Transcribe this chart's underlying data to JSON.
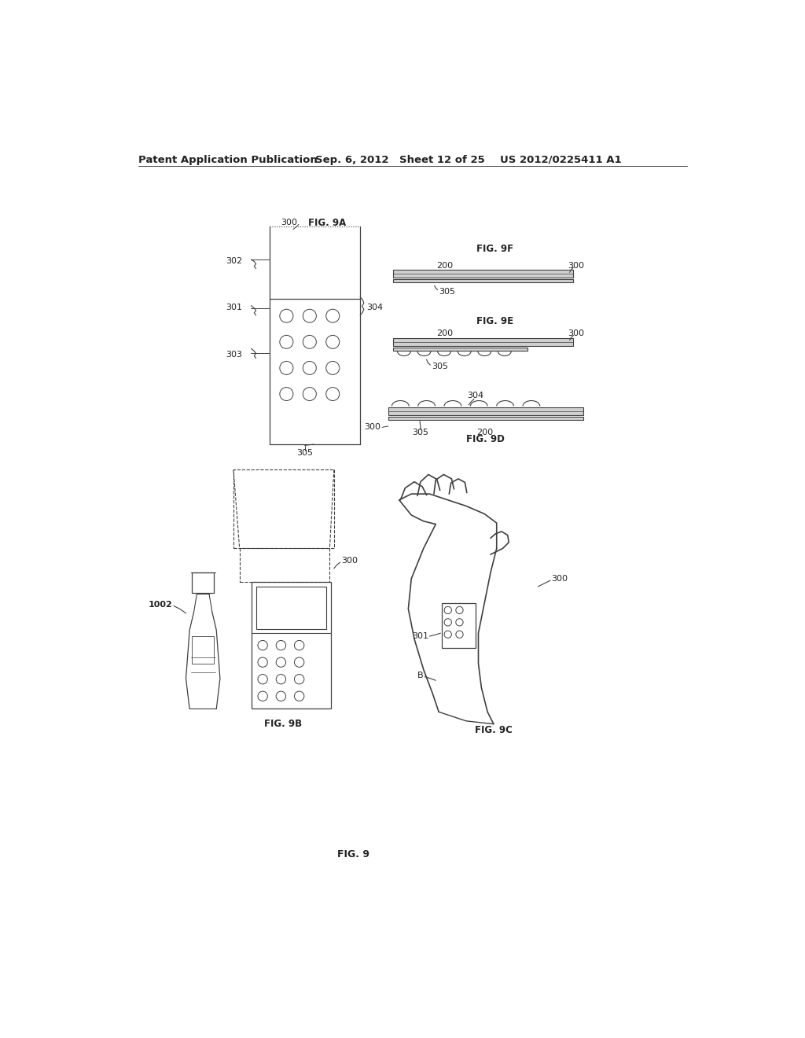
{
  "bg_color": "#ffffff",
  "header_text": "Patent Application Publication",
  "header_date": "Sep. 6, 2012",
  "header_sheet": "Sheet 12 of 25",
  "header_patent": "US 2012/0225411 A1",
  "fig_caption_main": "FIG. 9",
  "line_color": "#404040",
  "text_color": "#222222",
  "font_size_header": 9.5,
  "font_size_labels": 8,
  "font_size_fig": 9
}
